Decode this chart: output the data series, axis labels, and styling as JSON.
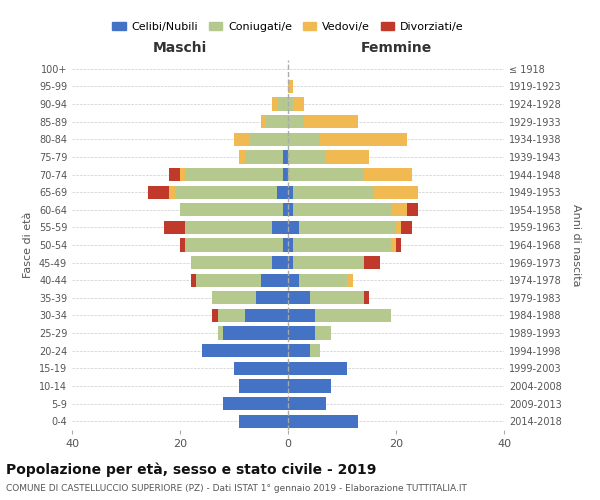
{
  "age_groups": [
    "0-4",
    "5-9",
    "10-14",
    "15-19",
    "20-24",
    "25-29",
    "30-34",
    "35-39",
    "40-44",
    "45-49",
    "50-54",
    "55-59",
    "60-64",
    "65-69",
    "70-74",
    "75-79",
    "80-84",
    "85-89",
    "90-94",
    "95-99",
    "100+"
  ],
  "birth_years": [
    "2014-2018",
    "2009-2013",
    "2004-2008",
    "1999-2003",
    "1994-1998",
    "1989-1993",
    "1984-1988",
    "1979-1983",
    "1974-1978",
    "1969-1973",
    "1964-1968",
    "1959-1963",
    "1954-1958",
    "1949-1953",
    "1944-1948",
    "1939-1943",
    "1934-1938",
    "1929-1933",
    "1924-1928",
    "1919-1923",
    "≤ 1918"
  ],
  "male": {
    "celibi": [
      9,
      12,
      9,
      10,
      16,
      12,
      8,
      6,
      5,
      3,
      1,
      3,
      1,
      2,
      1,
      1,
      0,
      0,
      0,
      0,
      0
    ],
    "coniugati": [
      0,
      0,
      0,
      0,
      0,
      1,
      5,
      8,
      12,
      15,
      18,
      16,
      19,
      19,
      18,
      7,
      7,
      4,
      2,
      0,
      0
    ],
    "vedovi": [
      0,
      0,
      0,
      0,
      0,
      0,
      0,
      0,
      0,
      0,
      0,
      0,
      0,
      1,
      1,
      1,
      3,
      1,
      1,
      0,
      0
    ],
    "divorziati": [
      0,
      0,
      0,
      0,
      0,
      0,
      1,
      0,
      1,
      0,
      1,
      4,
      0,
      4,
      2,
      0,
      0,
      0,
      0,
      0,
      0
    ]
  },
  "female": {
    "nubili": [
      13,
      7,
      8,
      11,
      4,
      5,
      5,
      4,
      2,
      1,
      1,
      2,
      1,
      1,
      0,
      0,
      0,
      0,
      0,
      0,
      0
    ],
    "coniugate": [
      0,
      0,
      0,
      0,
      2,
      3,
      14,
      10,
      9,
      13,
      18,
      18,
      18,
      15,
      14,
      7,
      6,
      3,
      1,
      0,
      0
    ],
    "vedove": [
      0,
      0,
      0,
      0,
      0,
      0,
      0,
      0,
      1,
      0,
      1,
      1,
      3,
      8,
      9,
      8,
      16,
      10,
      2,
      1,
      0
    ],
    "divorziate": [
      0,
      0,
      0,
      0,
      0,
      0,
      0,
      1,
      0,
      3,
      1,
      2,
      2,
      0,
      0,
      0,
      0,
      0,
      0,
      0,
      0
    ]
  },
  "colors": {
    "celibi_nubili": "#4472c4",
    "coniugati": "#b5c98e",
    "vedovi": "#f0b952",
    "divorziati": "#c0392b"
  },
  "title": "Popolazione per età, sesso e stato civile - 2019",
  "subtitle": "COMUNE DI CASTELLUCCIO SUPERIORE (PZ) - Dati ISTAT 1° gennaio 2019 - Elaborazione TUTTITALIA.IT",
  "xlabel_left": "Maschi",
  "xlabel_right": "Femmine",
  "ylabel_left": "Fasce di età",
  "ylabel_right": "Anni di nascita",
  "xlim": 40,
  "background_color": "#ffffff",
  "grid_color": "#cccccc"
}
